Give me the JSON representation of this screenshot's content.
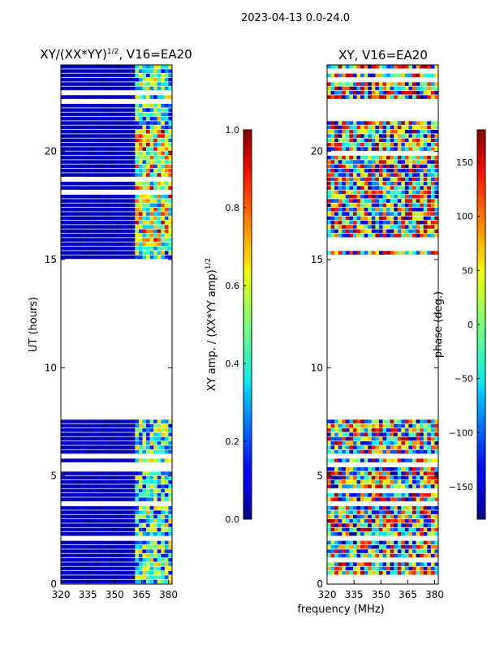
{
  "suptitle": "2023-04-13 0.0-24.0",
  "shared_xlabel": "frequency (MHz)",
  "chart_data": [
    {
      "type": "heatmap",
      "title": "XY/(XX*YY)^1/2, V16=EA20",
      "title_main": "XY/(XX*YY)",
      "title_sup": "1/2",
      "title_rest": ", V16=EA20",
      "xlabel": "frequency (MHz)",
      "ylabel": "UT (hours)",
      "xlim": [
        320,
        382
      ],
      "ylim": [
        0,
        24
      ],
      "x_ticks": [
        320,
        335,
        350,
        365,
        380
      ],
      "y_ticks": [
        0,
        5,
        10,
        15,
        20
      ],
      "no_data_ut_ranges": [
        [
          7.6,
          15.0
        ],
        [
          22.6,
          22.8
        ]
      ],
      "colorbar": {
        "label": "XY amp. / (XX*YY amp)^1/2",
        "label_main": "XY amp. / (XX*YY amp)",
        "label_sup": "1/2",
        "ticks": [
          "0.0",
          "0.2",
          "0.4",
          "0.6",
          "0.8",
          "1.0"
        ],
        "range": [
          0.0,
          1.0
        ]
      }
    },
    {
      "type": "heatmap",
      "title": "XY, V16=EA20",
      "xlabel": "frequency (MHz)",
      "ylabel": "",
      "xlim": [
        320,
        382
      ],
      "ylim": [
        0,
        24
      ],
      "x_ticks": [
        320,
        335,
        350,
        365,
        380
      ],
      "y_ticks": [
        0,
        5,
        10,
        15,
        20
      ],
      "no_data_ut_ranges": [
        [
          7.6,
          14.95
        ],
        [
          21.4,
          22.3
        ]
      ],
      "colorbar": {
        "label": "phase (deg.)",
        "ticks": [
          "−150",
          "−100",
          "−50",
          "0",
          "50",
          "100",
          "150"
        ],
        "range": [
          -180,
          180
        ]
      }
    }
  ]
}
